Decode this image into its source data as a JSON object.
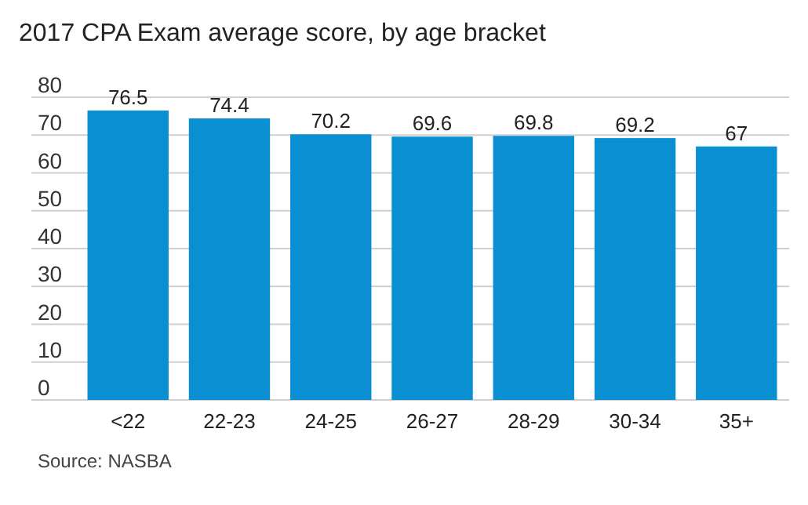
{
  "chart_data": {
    "type": "bar",
    "title": "2017 CPA Exam average score, by age bracket",
    "categories": [
      "<22",
      "22-23",
      "24-25",
      "26-27",
      "28-29",
      "30-34",
      "35+"
    ],
    "values": [
      76.5,
      74.4,
      70.2,
      69.6,
      69.8,
      69.2,
      67
    ],
    "color": "#0a8fd3",
    "ylim": [
      0,
      80
    ],
    "yticks": [
      0,
      10,
      20,
      30,
      40,
      50,
      60,
      70,
      80
    ],
    "grid": "y",
    "data_labels": true,
    "annotations": [
      "Source: NASBA"
    ]
  }
}
